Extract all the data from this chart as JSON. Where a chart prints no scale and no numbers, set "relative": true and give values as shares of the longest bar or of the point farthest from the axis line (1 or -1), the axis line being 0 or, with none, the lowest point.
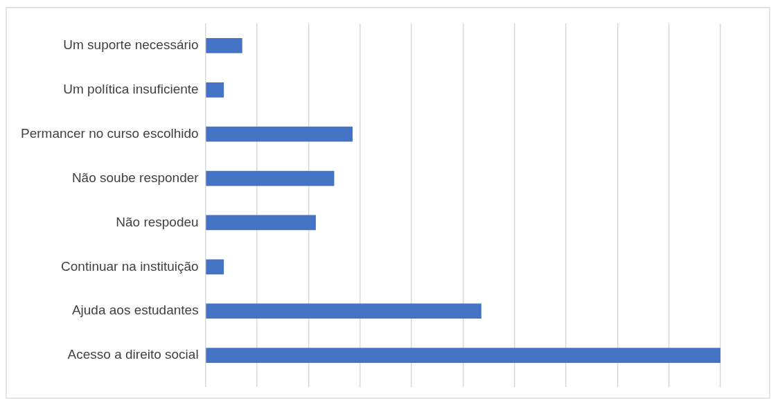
{
  "chart_data": {
    "type": "bar",
    "orientation": "horizontal",
    "relative": true,
    "grid": "x",
    "categories": [
      "Um suporte necessário",
      "Um política insuficiente",
      "Permancer no curso escolhido",
      "Não soube responder",
      "Não respodeu",
      "Continuar na instituição",
      "Ajuda aos estudantes",
      "Acesso a direito social"
    ],
    "values": [
      0.0714,
      0.0357,
      0.2857,
      0.25,
      0.2143,
      0.0357,
      0.5357,
      1
    ],
    "color": "#4472c4"
  }
}
